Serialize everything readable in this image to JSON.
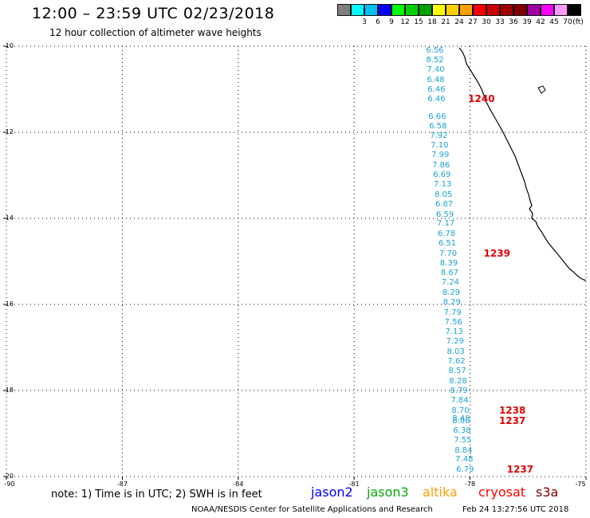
{
  "title": "12:00 – 23:59 UTC 02/23/2018",
  "subtitle": "12 hour collection of altimeter wave heights",
  "legend": {
    "unit": "(ft)",
    "swatches": [
      {
        "color": "#808080",
        "label": ""
      },
      {
        "color": "#00ffff",
        "label": "3"
      },
      {
        "color": "#00bfff",
        "label": "6"
      },
      {
        "color": "#0000ff",
        "label": "9"
      },
      {
        "color": "#00ff00",
        "label": "12"
      },
      {
        "color": "#00d000",
        "label": "15"
      },
      {
        "color": "#00a000",
        "label": "18"
      },
      {
        "color": "#ffff00",
        "label": "21"
      },
      {
        "color": "#ffd000",
        "label": "24"
      },
      {
        "color": "#ffa000",
        "label": "27"
      },
      {
        "color": "#ff0000",
        "label": "30"
      },
      {
        "color": "#d00000",
        "label": "33"
      },
      {
        "color": "#a00000",
        "label": "36"
      },
      {
        "color": "#800000",
        "label": "39"
      },
      {
        "color": "#a000a0",
        "label": "42"
      },
      {
        "color": "#ff00ff",
        "label": "45"
      },
      {
        "color": "#ff99ff",
        "label": "70"
      },
      {
        "color": "#000000",
        "label": ""
      }
    ]
  },
  "map": {
    "lat_range": [
      -20,
      -10
    ],
    "lon_range": [
      -90,
      -75
    ],
    "lat_labels": [
      "-10",
      "-12",
      "-14",
      "-16",
      "-18",
      "-20"
    ],
    "lon_labels": [
      "-90",
      "-87",
      "-84",
      "-81",
      "-78",
      "-75"
    ],
    "grid": "dotted",
    "swh_values": [
      {
        "lon": -78.91,
        "lat": -10.09,
        "value": "6.56"
      },
      {
        "lon": -78.91,
        "lat": -10.32,
        "value": "8.52"
      },
      {
        "lon": -78.89,
        "lat": -10.54,
        "value": "7.40"
      },
      {
        "lon": -78.89,
        "lat": -10.77,
        "value": "6.48"
      },
      {
        "lon": -78.87,
        "lat": -11.0,
        "value": "6.46"
      },
      {
        "lon": -78.87,
        "lat": -11.22,
        "value": "6.46"
      },
      {
        "lon": -78.85,
        "lat": -11.63,
        "value": "6.66"
      },
      {
        "lon": -78.83,
        "lat": -11.85,
        "value": "6.58"
      },
      {
        "lon": -78.81,
        "lat": -12.07,
        "value": "7.92"
      },
      {
        "lon": -78.79,
        "lat": -12.3,
        "value": "7.10"
      },
      {
        "lon": -78.77,
        "lat": -12.52,
        "value": "7.99"
      },
      {
        "lon": -78.75,
        "lat": -12.76,
        "value": "7.86"
      },
      {
        "lon": -78.73,
        "lat": -12.99,
        "value": "6.69"
      },
      {
        "lon": -78.71,
        "lat": -13.21,
        "value": "7.13"
      },
      {
        "lon": -78.69,
        "lat": -13.44,
        "value": "8.05"
      },
      {
        "lon": -78.67,
        "lat": -13.67,
        "value": "6.87"
      },
      {
        "lon": -78.65,
        "lat": -13.9,
        "value": "6.59"
      },
      {
        "lon": -78.63,
        "lat": -14.12,
        "value": "7.17"
      },
      {
        "lon": -78.61,
        "lat": -14.35,
        "value": "6.78"
      },
      {
        "lon": -78.59,
        "lat": -14.58,
        "value": "6.51"
      },
      {
        "lon": -78.57,
        "lat": -14.81,
        "value": "7.70"
      },
      {
        "lon": -78.55,
        "lat": -15.04,
        "value": "8.39"
      },
      {
        "lon": -78.53,
        "lat": -15.26,
        "value": "8.67"
      },
      {
        "lon": -78.51,
        "lat": -15.49,
        "value": "7.24"
      },
      {
        "lon": -78.49,
        "lat": -15.72,
        "value": "8.29"
      },
      {
        "lon": -78.47,
        "lat": -15.95,
        "value": "8.29"
      },
      {
        "lon": -78.45,
        "lat": -16.18,
        "value": "7.79"
      },
      {
        "lon": -78.43,
        "lat": -16.4,
        "value": "7.56"
      },
      {
        "lon": -78.41,
        "lat": -16.63,
        "value": "7.13"
      },
      {
        "lon": -78.39,
        "lat": -16.86,
        "value": "7.29"
      },
      {
        "lon": -78.37,
        "lat": -17.09,
        "value": "8.03"
      },
      {
        "lon": -78.35,
        "lat": -17.32,
        "value": "7.62"
      },
      {
        "lon": -78.33,
        "lat": -17.54,
        "value": "8.57"
      },
      {
        "lon": -78.31,
        "lat": -17.77,
        "value": "8.28"
      },
      {
        "lon": -78.29,
        "lat": -18.0,
        "value": "8.79"
      },
      {
        "lon": -78.27,
        "lat": -18.23,
        "value": "7.84"
      },
      {
        "lon": -78.25,
        "lat": -18.46,
        "value": "8.70"
      },
      {
        "lon": -78.23,
        "lat": -18.64,
        "value": "8.48"
      },
      {
        "lon": -78.23,
        "lat": -18.7,
        "value": "8.00"
      },
      {
        "lon": -78.21,
        "lat": -18.92,
        "value": "6.38"
      },
      {
        "lon": -78.19,
        "lat": -19.15,
        "value": "7.55"
      },
      {
        "lon": -78.17,
        "lat": -19.38,
        "value": "8.84"
      },
      {
        "lon": -78.15,
        "lat": -19.6,
        "value": "7.48"
      },
      {
        "lon": -78.13,
        "lat": -19.83,
        "value": "6.79"
      }
    ],
    "pass_labels": [
      {
        "lon": -78.05,
        "lat": -11.22,
        "value": "1240"
      },
      {
        "lon": -77.65,
        "lat": -14.81,
        "value": "1239"
      },
      {
        "lon": -77.25,
        "lat": -18.46,
        "value": "1238"
      },
      {
        "lon": -77.25,
        "lat": -18.7,
        "value": "1237"
      },
      {
        "lon": -77.05,
        "lat": -19.83,
        "value": "1237"
      }
    ]
  },
  "note": "note: 1) Time is in UTC; 2) SWH is in feet",
  "satellites": [
    {
      "name": "jason2",
      "color": "#0000ff"
    },
    {
      "name": "jason3",
      "color": "#00aa00"
    },
    {
      "name": "altika",
      "color": "#ffa000"
    },
    {
      "name": "cryosat",
      "color": "#ff0000"
    },
    {
      "name": "s3a",
      "color": "#800000"
    }
  ],
  "footer_left": "NOAA/NESDIS Center for Satellite Applications and Research",
  "footer_right": "Feb 24 13:27:56 UTC 2018"
}
